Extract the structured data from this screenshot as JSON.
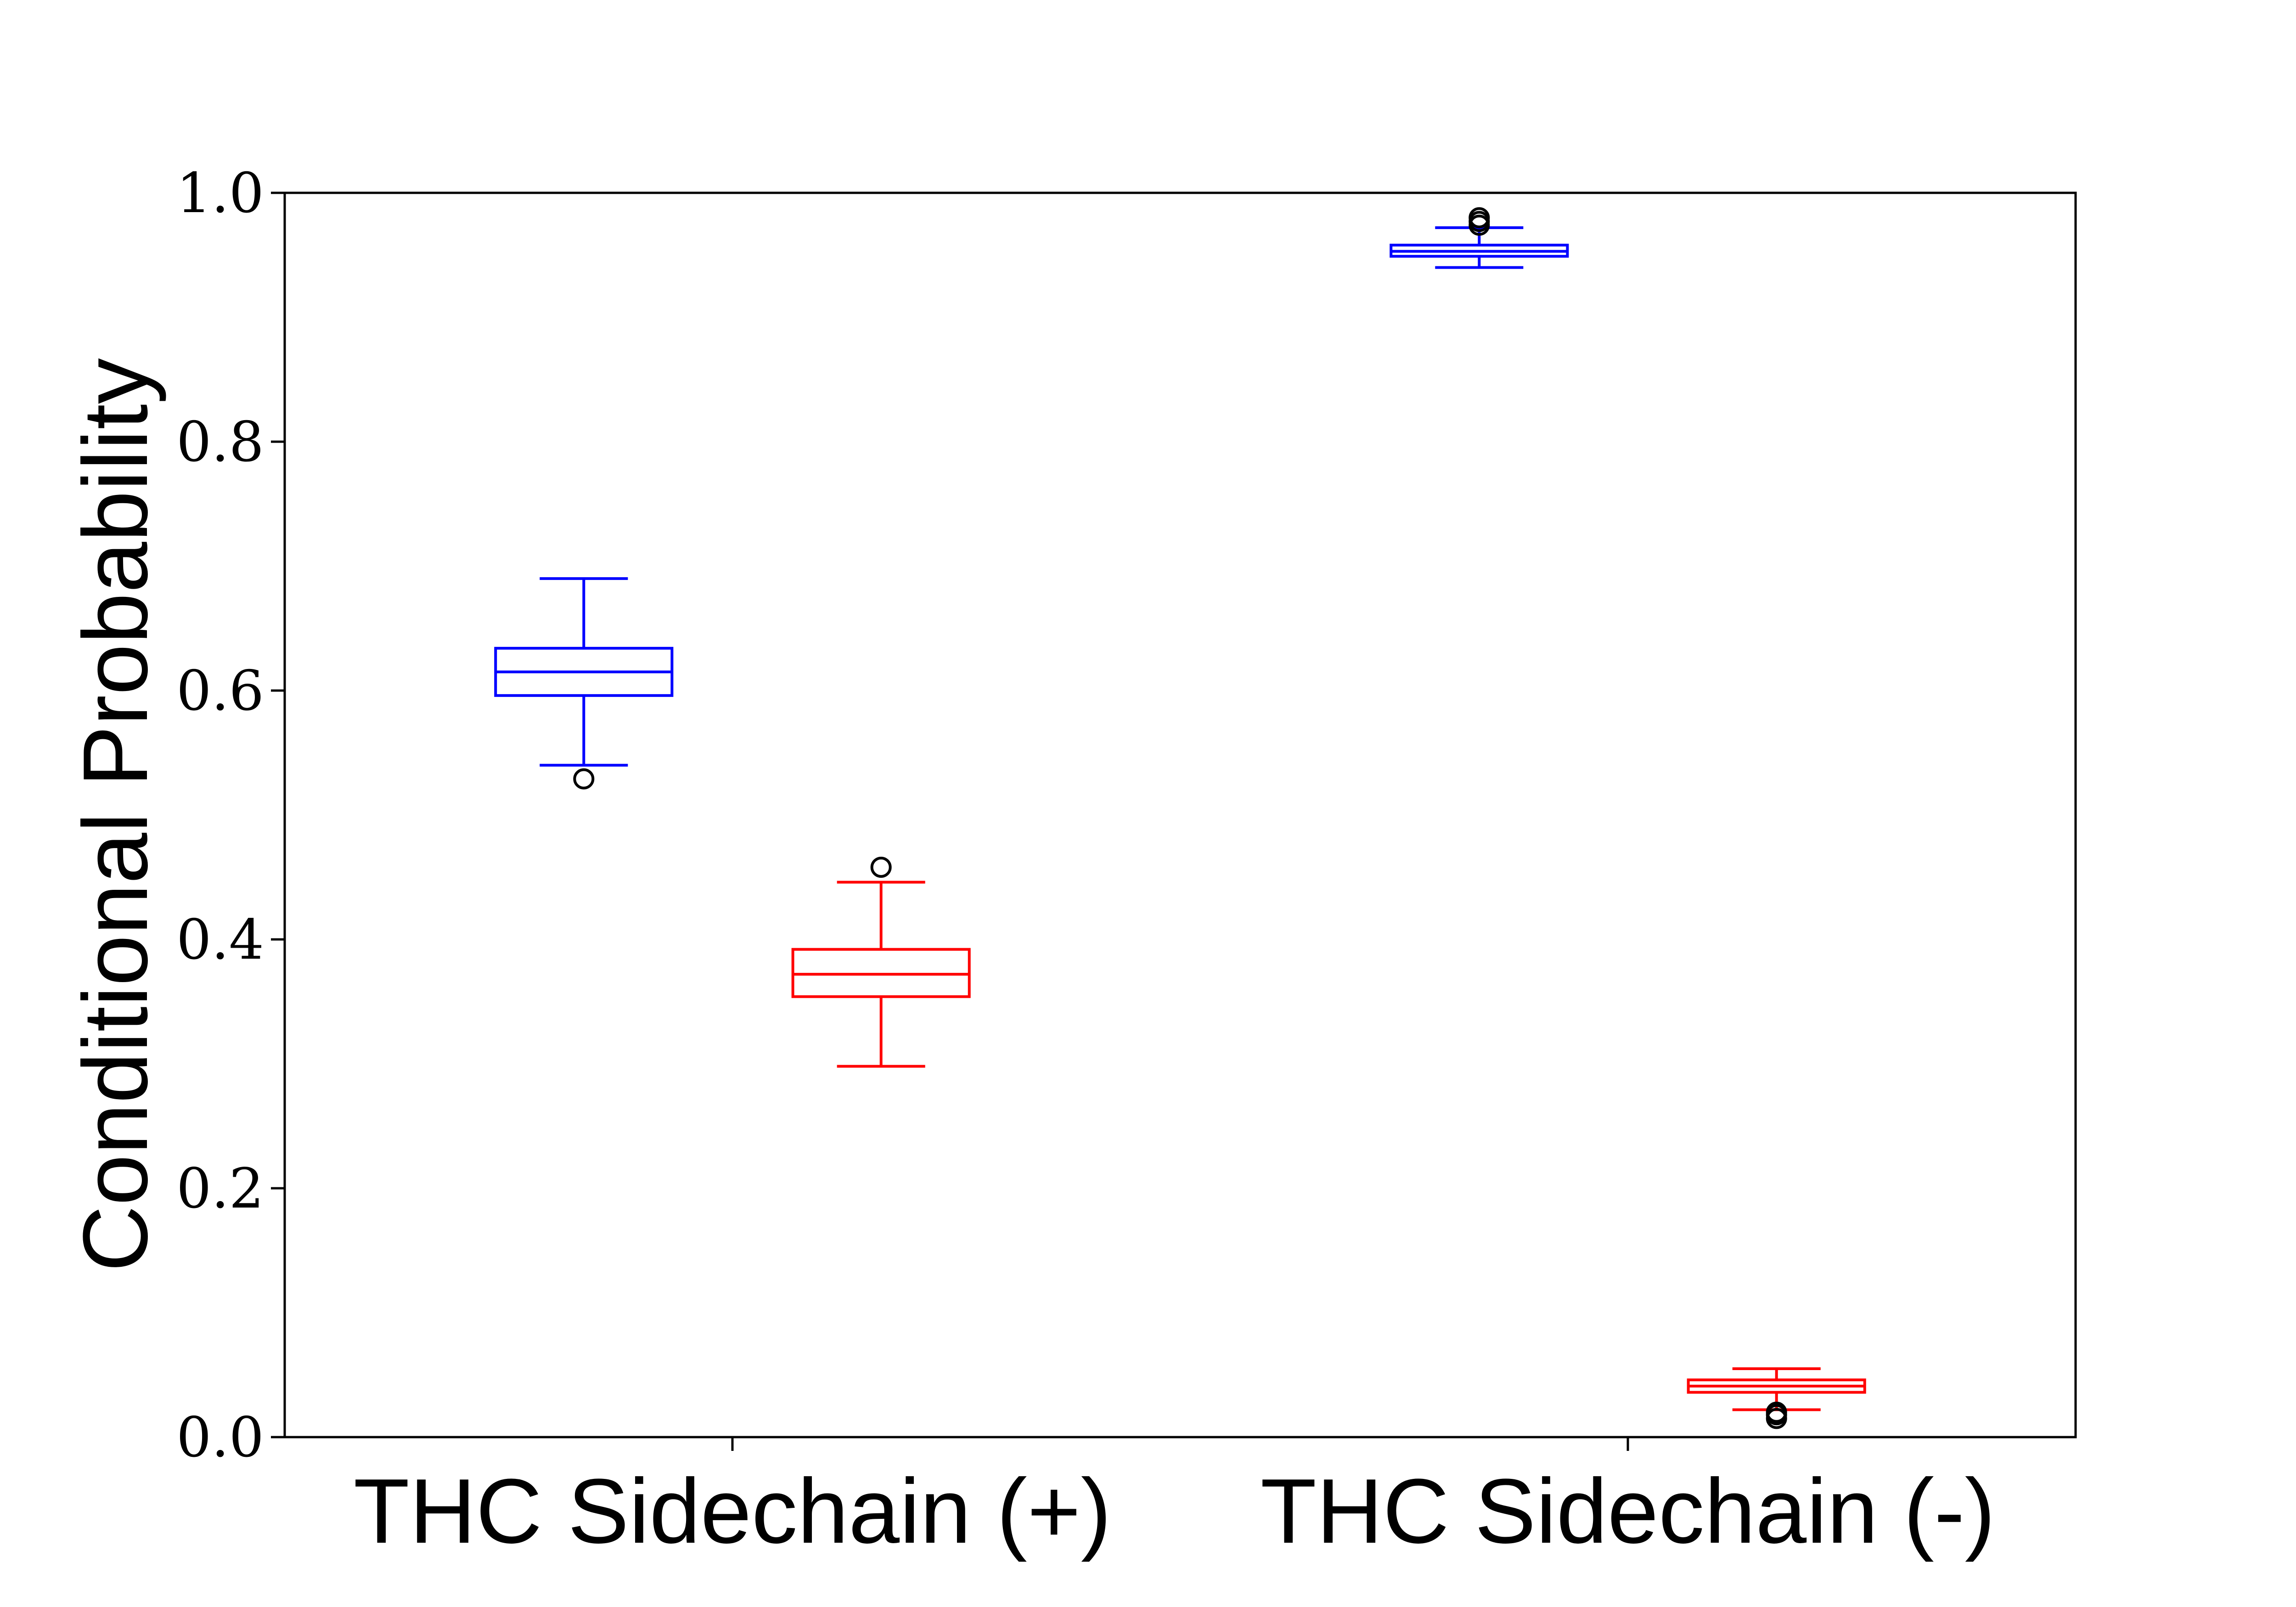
{
  "chart_data": {
    "type": "box",
    "title": "",
    "xlabel": "",
    "ylabel": "Conditional Probability",
    "ylim": [
      0.0,
      1.0
    ],
    "yticks": [
      "0.0",
      "0.2",
      "0.4",
      "0.6",
      "0.8",
      "1.0"
    ],
    "ytick_values": [
      0.0,
      0.2,
      0.4,
      0.6,
      0.8,
      1.0
    ],
    "categories": [
      "THC Sidechain (+)",
      "THC Sidechain (-)"
    ],
    "grid": false,
    "legend": "none",
    "series": [
      {
        "color": "#0000ff",
        "boxes": [
          {
            "category": "THC Sidechain (+)",
            "whisker_low": 0.54,
            "q1": 0.596,
            "median": 0.615,
            "q3": 0.634,
            "whisker_high": 0.69,
            "outliers": [
              0.529
            ]
          },
          {
            "category": "THC Sidechain (-)",
            "whisker_low": 0.94,
            "q1": 0.949,
            "median": 0.953,
            "q3": 0.958,
            "whisker_high": 0.972,
            "outliers": [
              0.974,
              0.977,
              0.98
            ]
          }
        ]
      },
      {
        "color": "#ff0000",
        "boxes": [
          {
            "category": "THC Sidechain (+)",
            "whisker_low": 0.298,
            "q1": 0.354,
            "median": 0.372,
            "q3": 0.392,
            "whisker_high": 0.446,
            "outliers": [
              0.458
            ]
          },
          {
            "category": "THC Sidechain (-)",
            "whisker_low": 0.022,
            "q1": 0.036,
            "median": 0.041,
            "q3": 0.046,
            "whisker_high": 0.055,
            "outliers": [
              0.015,
              0.018,
              0.02
            ]
          }
        ]
      }
    ]
  }
}
